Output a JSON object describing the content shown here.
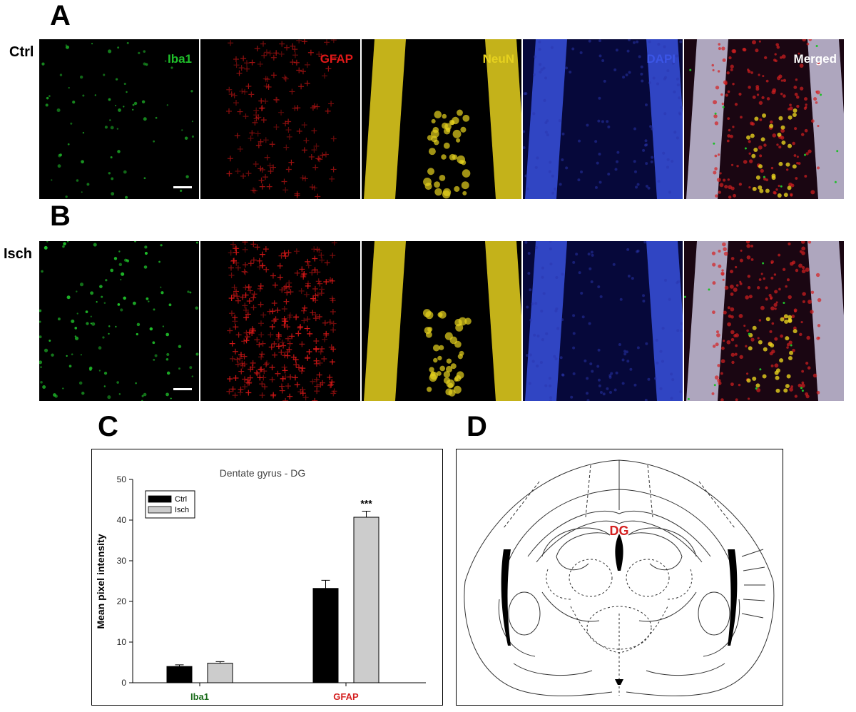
{
  "panels": {
    "a": "A",
    "b": "B",
    "c": "C",
    "d": "D"
  },
  "rows": [
    {
      "label": "Ctrl",
      "intensity": 0.55
    },
    {
      "label": "Isch",
      "intensity": 1.0
    }
  ],
  "channels": [
    {
      "label": "Iba1",
      "color": "#1fbf2a",
      "icon": "microglia-stain"
    },
    {
      "label": "GFAP",
      "color": "#e01818",
      "icon": "astrocyte-stain"
    },
    {
      "label": "NeuN",
      "color": "#e6d11e",
      "icon": "neuron-stain"
    },
    {
      "label": "DAPI",
      "color": "#3b55e6",
      "icon": "nuclei-stain"
    },
    {
      "label": "Merged",
      "color": "#ffffff",
      "icon": "merged-stain"
    }
  ],
  "chart_data": {
    "type": "bar",
    "title": "Dentate gyrus - DG",
    "ylabel": "Mean pixel intensity",
    "xlabel": "",
    "ylim": [
      0,
      50
    ],
    "yticks": [
      0,
      10,
      20,
      30,
      40,
      50
    ],
    "categories": [
      "Iba1",
      "GFAP"
    ],
    "category_colors": [
      "#1a6b1a",
      "#d42020"
    ],
    "series": [
      {
        "name": "Ctrl",
        "color": "#000000",
        "values": [
          4.0,
          23.2
        ],
        "errors": [
          0.4,
          2.0
        ]
      },
      {
        "name": "Isch",
        "color": "#cccccc",
        "values": [
          4.8,
          40.7
        ],
        "errors": [
          0.4,
          1.5
        ]
      }
    ],
    "annotations": [
      {
        "text": "***",
        "category": "GFAP",
        "series": "Isch"
      }
    ],
    "legend_position": "top-left",
    "grid": false
  },
  "diagram": {
    "label": "DG",
    "label_color": "#d42020"
  }
}
